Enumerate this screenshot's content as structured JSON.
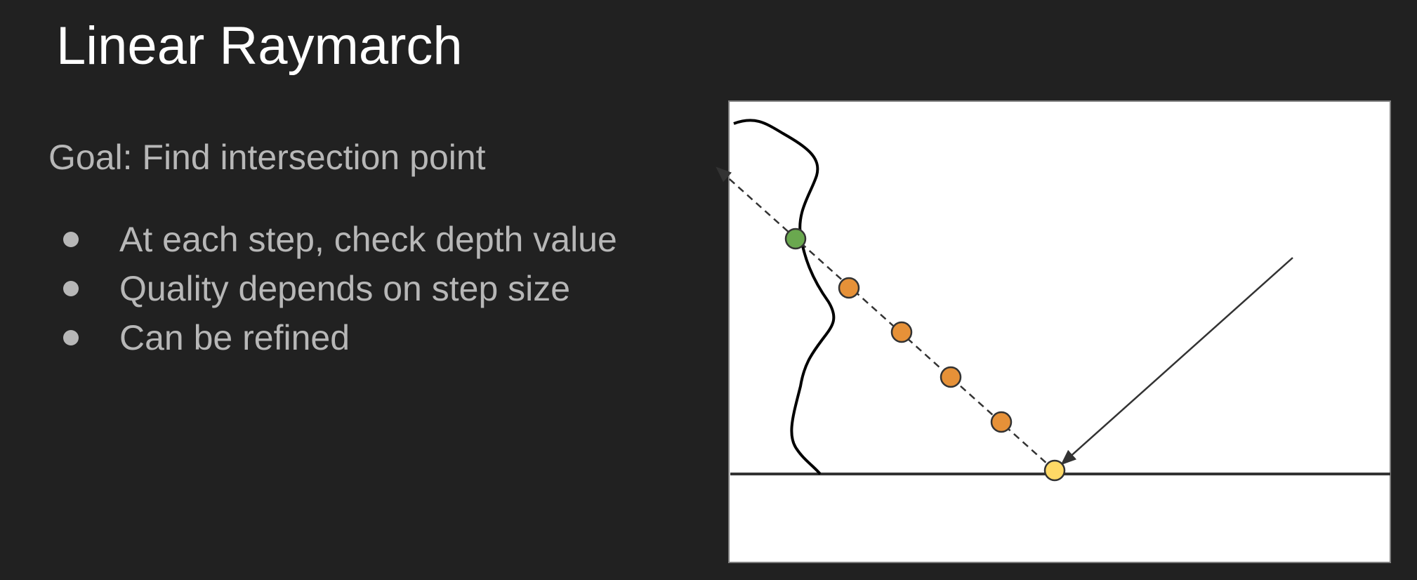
{
  "slide": {
    "title": "Linear Raymarch",
    "goal": "Goal: Find intersection point",
    "bullets": [
      "At each step, check depth value",
      "Quality depends on step size",
      "Can be refined"
    ]
  },
  "colors": {
    "background": "#212121",
    "title_text": "#ffffff",
    "body_text": "#b7b7b7",
    "panel": "#ffffff",
    "hit_point": "#6aa84f",
    "step_point": "#e69138",
    "origin_point": "#ffd966",
    "stroke": "#333333"
  },
  "diagram": {
    "elements": [
      "surface-curve",
      "ground-line",
      "incoming-ray",
      "reflected-ray-dashed",
      "hit-point",
      "step-points",
      "origin-point"
    ],
    "step_count": 4
  }
}
